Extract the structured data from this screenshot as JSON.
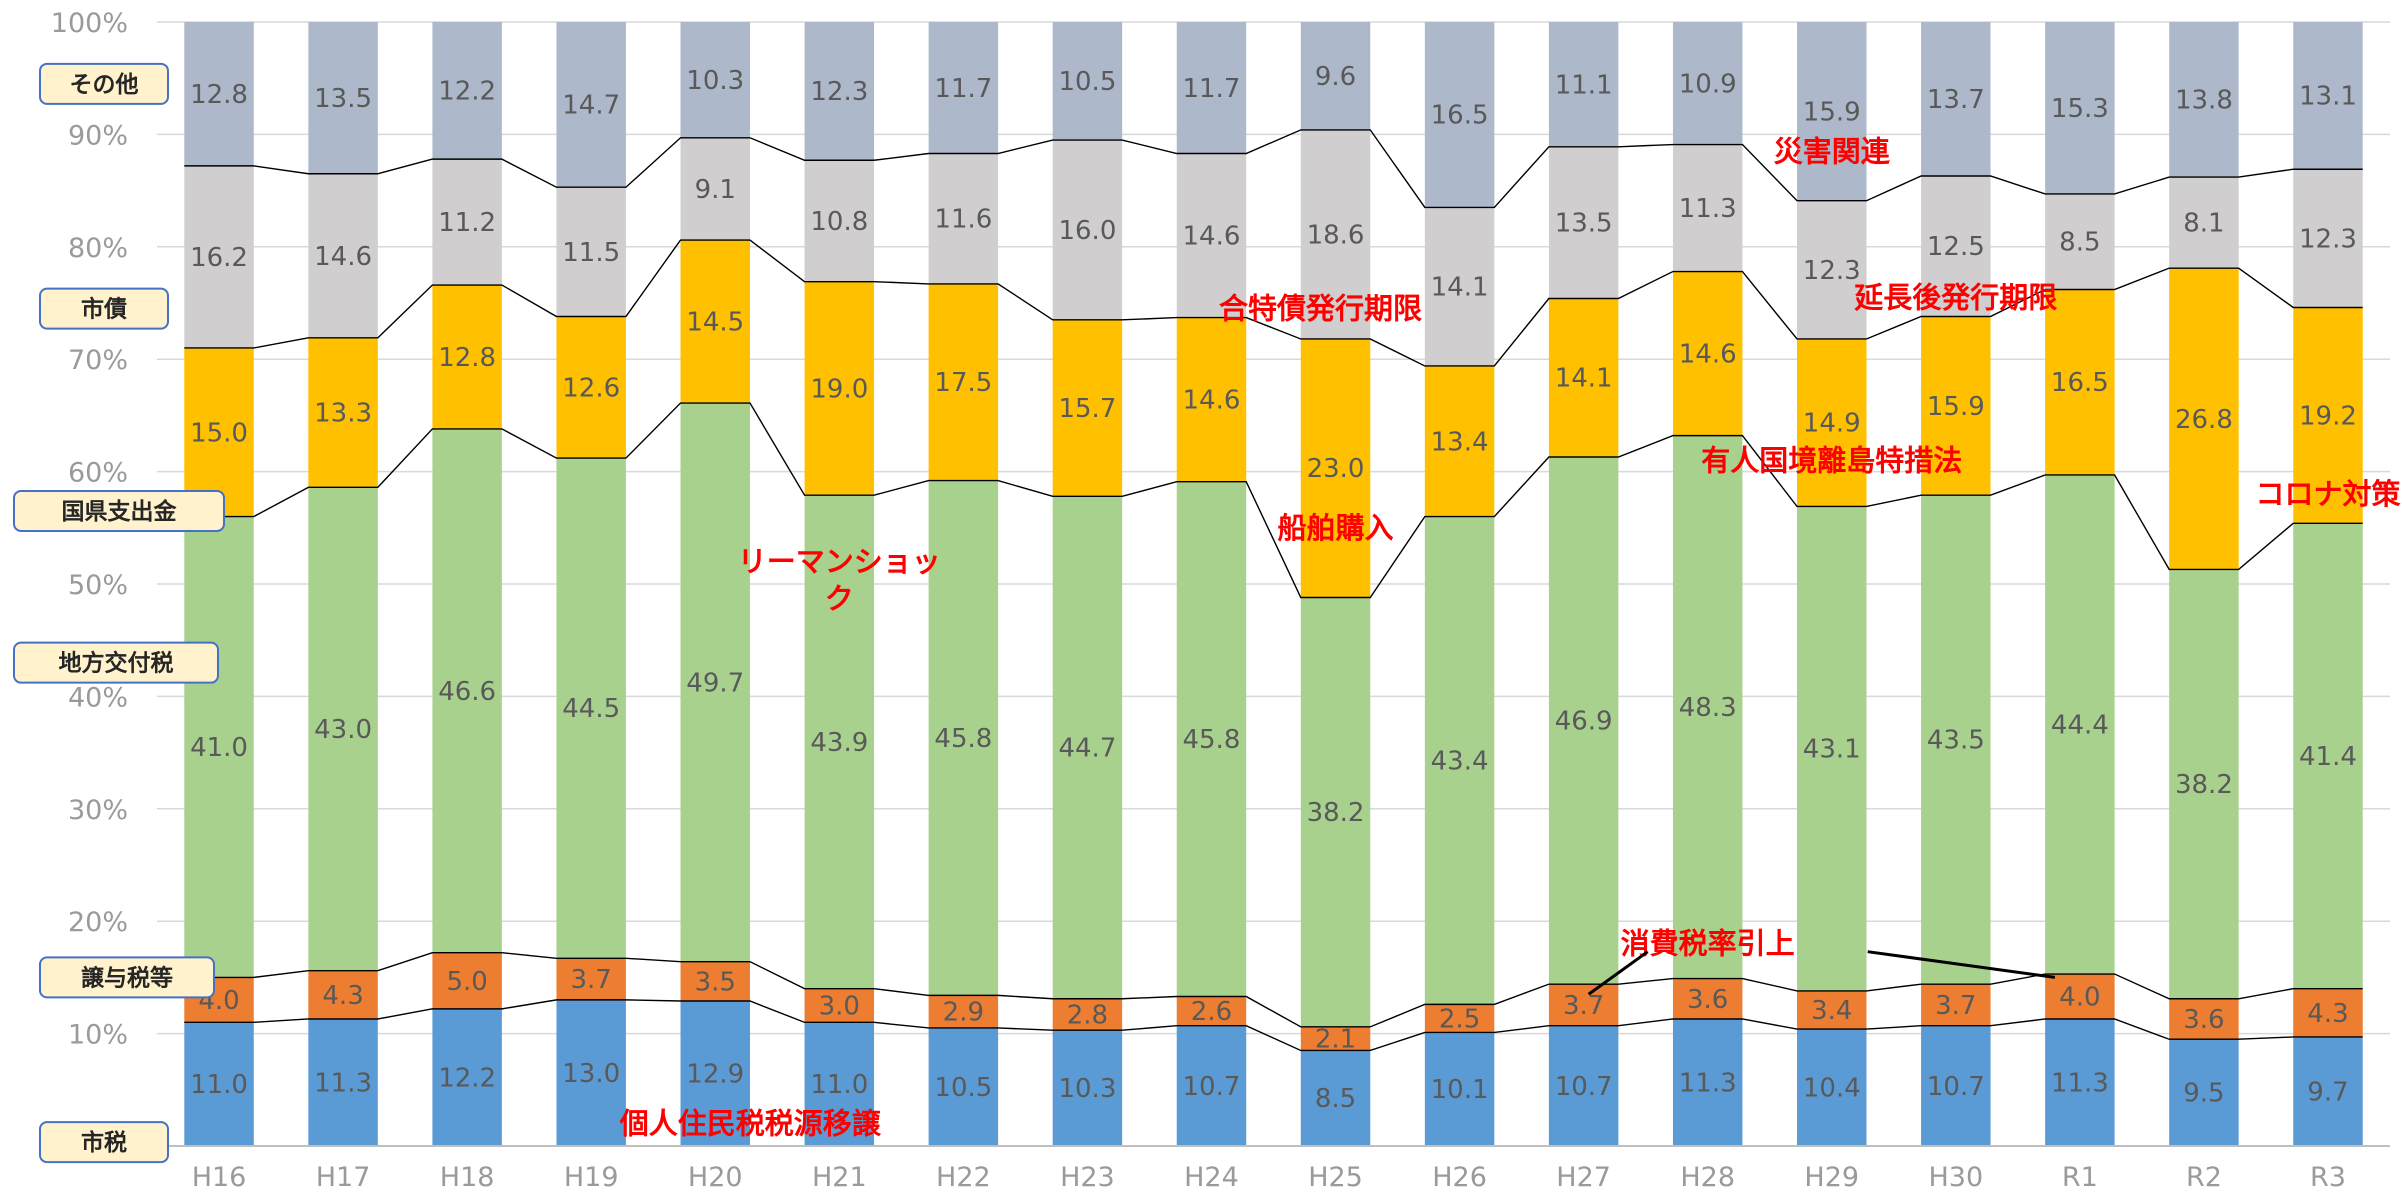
{
  "chart_data": {
    "type": "bar",
    "stacked": "percent",
    "categories": [
      "H16",
      "H17",
      "H18",
      "H19",
      "H20",
      "H21",
      "H22",
      "H23",
      "H24",
      "H25",
      "H26",
      "H27",
      "H28",
      "H29",
      "H30",
      "R1",
      "R2",
      "R3"
    ],
    "ylim": [
      0,
      100
    ],
    "y_ticks": [
      "0%",
      "10%",
      "20%",
      "30%",
      "40%",
      "50%",
      "60%",
      "70%",
      "80%",
      "90%",
      "100%"
    ],
    "grid": true,
    "series": [
      {
        "name": "市税",
        "color": "#5b9bd5",
        "values": [
          11.0,
          11.3,
          12.2,
          13.0,
          12.9,
          11.0,
          10.5,
          10.3,
          10.7,
          8.5,
          10.1,
          10.7,
          11.3,
          10.4,
          10.7,
          11.3,
          9.5,
          9.7
        ]
      },
      {
        "name": "譲与税等",
        "color": "#ed7d31",
        "values": [
          4.0,
          4.3,
          5.0,
          3.7,
          3.5,
          3.0,
          2.9,
          2.8,
          2.6,
          2.1,
          2.5,
          3.7,
          3.6,
          3.4,
          3.7,
          4.0,
          3.6,
          4.3
        ]
      },
      {
        "name": "地方交付税",
        "color": "#a9d18e",
        "values": [
          41.0,
          43.0,
          46.6,
          44.5,
          49.7,
          43.9,
          45.8,
          44.7,
          45.8,
          38.2,
          43.4,
          46.9,
          48.3,
          43.1,
          43.5,
          44.4,
          38.2,
          41.4
        ]
      },
      {
        "name": "国県支出金",
        "color": "#ffc000",
        "values": [
          15.0,
          13.3,
          12.8,
          12.6,
          14.5,
          19.0,
          17.5,
          15.7,
          14.6,
          23.0,
          13.4,
          14.1,
          14.6,
          14.9,
          15.9,
          16.5,
          26.8,
          19.2
        ]
      },
      {
        "name": "市債",
        "color": "#d0cece",
        "values": [
          16.2,
          14.6,
          11.2,
          11.5,
          9.1,
          10.8,
          11.6,
          16.0,
          14.6,
          18.6,
          14.1,
          13.5,
          11.3,
          12.3,
          12.5,
          8.5,
          8.1,
          12.3
        ]
      },
      {
        "name": "その他",
        "color": "#adb9ca",
        "values": [
          12.8,
          13.5,
          12.2,
          14.7,
          10.3,
          12.3,
          11.7,
          10.5,
          11.7,
          9.6,
          16.5,
          11.1,
          10.9,
          15.9,
          13.7,
          15.3,
          13.8,
          13.1
        ]
      }
    ],
    "annotations": [
      {
        "text": "個人住民税税源移譲",
        "category": "H20",
        "y": 2.0
      },
      {
        "text": "リーマンショッ",
        "category": "H21",
        "y": 52.0
      },
      {
        "text": "ク",
        "category": "H21",
        "y": 48.7
      },
      {
        "text": "船舶購入",
        "category": "H25",
        "y": 55.0
      },
      {
        "text": "合特債発行期限",
        "category": "H25",
        "y": 74.5
      },
      {
        "text": "消費税率引上",
        "category": "H28",
        "y": 18.0
      },
      {
        "text": "有人国境離島特措法",
        "category": "H29",
        "y": 61.0
      },
      {
        "text": "災害関連",
        "category": "H29",
        "y": 88.5
      },
      {
        "text": "延長後発行期限",
        "category": "H30",
        "y": 75.5
      },
      {
        "text": "コロナ対策",
        "category": "R3",
        "y": 58.0
      }
    ]
  }
}
